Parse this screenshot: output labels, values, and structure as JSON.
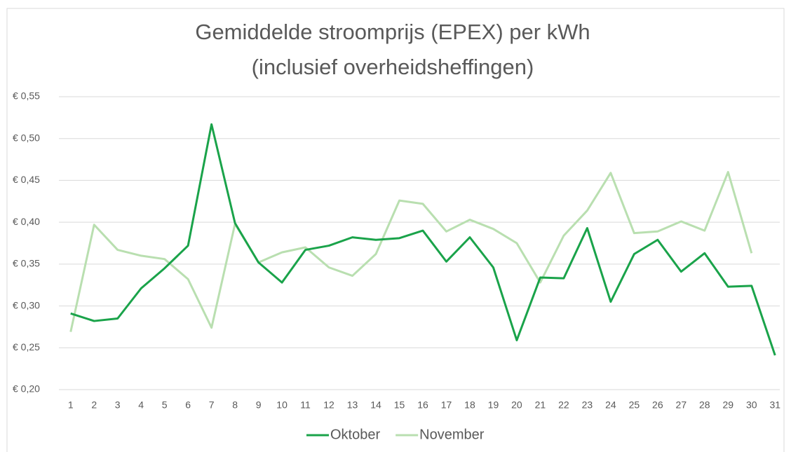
{
  "chart_data": {
    "type": "line",
    "title": [
      "Gemiddelde stroomprijs (EPEX) per kWh",
      "(inclusief overheidsheffingen)"
    ],
    "categories": [
      "1",
      "2",
      "3",
      "4",
      "5",
      "6",
      "7",
      "8",
      "9",
      "10",
      "11",
      "12",
      "13",
      "14",
      "15",
      "16",
      "17",
      "18",
      "19",
      "20",
      "21",
      "22",
      "23",
      "24",
      "25",
      "26",
      "27",
      "28",
      "29",
      "30",
      "31"
    ],
    "series": [
      {
        "name": "Oktober",
        "color": "#1aa34a",
        "values": [
          0.291,
          0.282,
          0.285,
          0.321,
          0.345,
          0.372,
          0.517,
          0.399,
          0.352,
          0.328,
          0.367,
          0.372,
          0.382,
          0.379,
          0.381,
          0.39,
          0.353,
          0.382,
          0.346,
          0.259,
          0.334,
          0.333,
          0.393,
          0.305,
          0.362,
          0.379,
          0.341,
          0.363,
          0.323,
          0.324,
          0.241
        ]
      },
      {
        "name": "November",
        "color": "#b9dfb0",
        "values": [
          0.269,
          0.397,
          0.367,
          0.36,
          0.356,
          0.332,
          0.274,
          0.398,
          0.352,
          0.364,
          0.37,
          0.346,
          0.336,
          0.362,
          0.426,
          0.422,
          0.389,
          0.403,
          0.392,
          0.375,
          0.328,
          0.384,
          0.414,
          0.459,
          0.387,
          0.389,
          0.401,
          0.39,
          0.46,
          0.363,
          null
        ]
      }
    ],
    "ylim": [
      0.2,
      0.55
    ],
    "yticks": [
      {
        "value": 0.2,
        "label": "€ 0,20"
      },
      {
        "value": 0.25,
        "label": "€ 0,25"
      },
      {
        "value": 0.3,
        "label": "€ 0,30"
      },
      {
        "value": 0.35,
        "label": "€ 0,35"
      },
      {
        "value": 0.4,
        "label": "€ 0,40"
      },
      {
        "value": 0.45,
        "label": "€ 0,45"
      },
      {
        "value": 0.5,
        "label": "€ 0,50"
      },
      {
        "value": 0.55,
        "label": "€ 0,55"
      }
    ],
    "grid": true,
    "legend": "bottom"
  }
}
